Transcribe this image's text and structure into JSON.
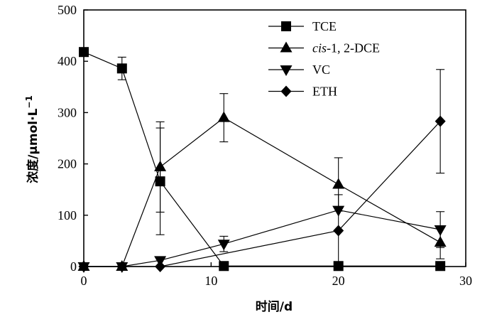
{
  "chart_data": {
    "type": "line",
    "xlabel": "时间/d",
    "ylabel_main": "浓度/μmol·L",
    "ylabel_sup": "−1",
    "xlim": [
      0,
      30
    ],
    "ylim": [
      0,
      500
    ],
    "xticks": [
      0,
      10,
      20,
      30
    ],
    "yticks": [
      0,
      100,
      200,
      300,
      400,
      500
    ],
    "grid": false,
    "legend_position": "top-right",
    "series": [
      {
        "name": "TCE",
        "name_prefix": "",
        "name_italic": "",
        "name_suffix": "TCE",
        "marker": "square",
        "x": [
          0,
          3,
          6,
          11,
          20,
          28
        ],
        "y": [
          418,
          386,
          166,
          1,
          1,
          1
        ],
        "err": [
          0,
          22,
          104,
          0,
          0,
          0
        ]
      },
      {
        "name": "cis-1, 2-DCE",
        "name_prefix": "",
        "name_italic": "cis",
        "name_suffix": "-1, 2-DCE",
        "marker": "triangle-up",
        "x": [
          0,
          3,
          6,
          11,
          20,
          28
        ],
        "y": [
          0,
          0,
          194,
          290,
          160,
          47
        ],
        "err": [
          0,
          0,
          88,
          47,
          52,
          32
        ]
      },
      {
        "name": "VC",
        "name_prefix": "",
        "name_italic": "",
        "name_suffix": "VC",
        "marker": "triangle-down",
        "x": [
          0,
          3,
          6,
          11,
          20,
          28
        ],
        "y": [
          0,
          0,
          12,
          44,
          110,
          72
        ],
        "err": [
          0,
          0,
          0,
          15,
          0,
          35
        ]
      },
      {
        "name": "ETH",
        "name_prefix": "",
        "name_italic": "",
        "name_suffix": "ETH",
        "marker": "diamond",
        "x": [
          0,
          3,
          6,
          20,
          28
        ],
        "y": [
          0,
          0,
          0,
          70,
          283
        ],
        "err": [
          0,
          0,
          0,
          70,
          101
        ]
      }
    ]
  }
}
